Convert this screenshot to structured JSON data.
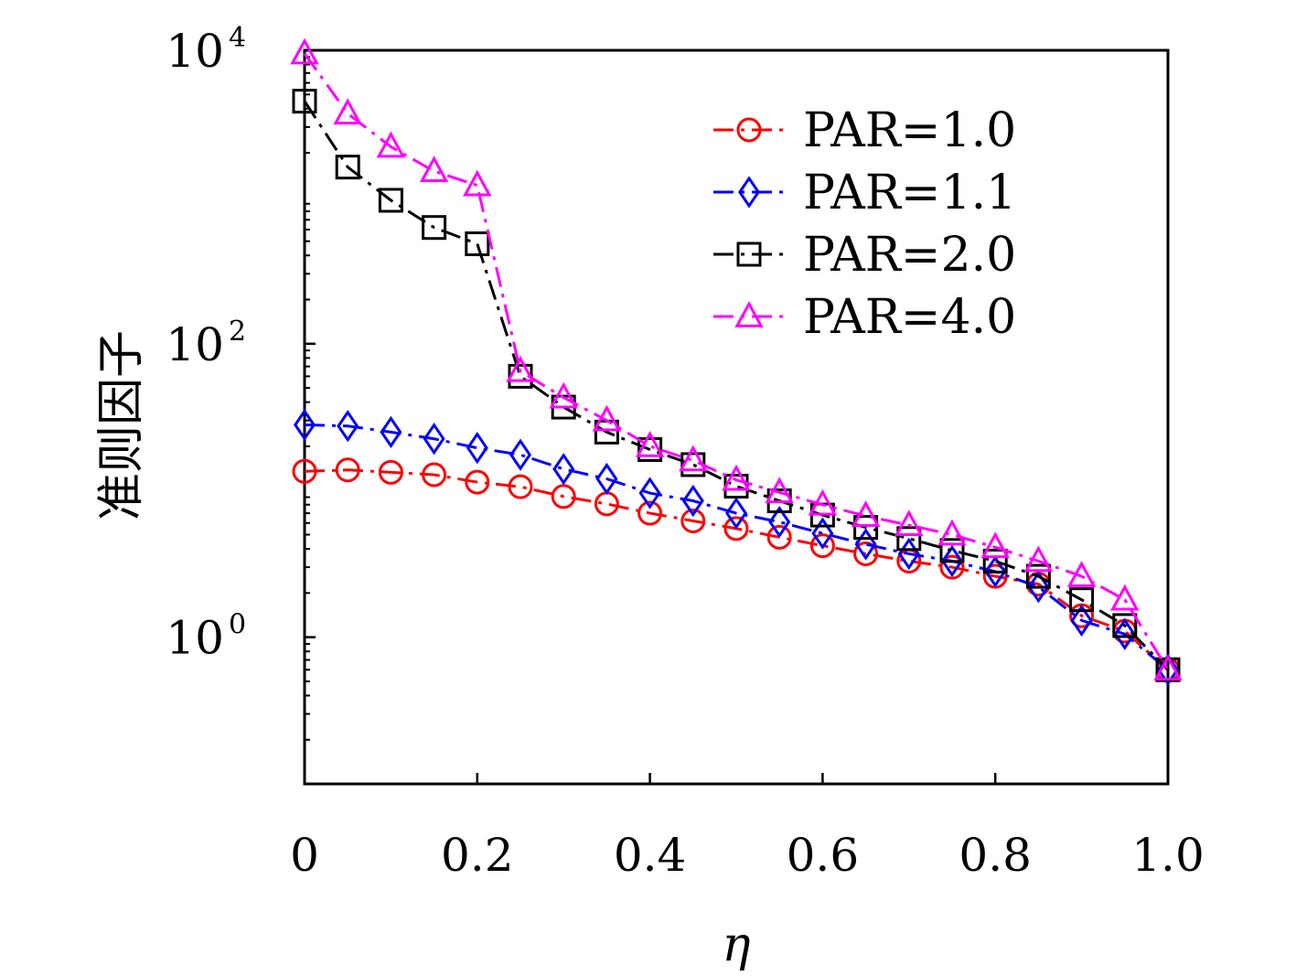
{
  "chart_data": {
    "type": "line",
    "xlabel": "η",
    "ylabel": "准则因子",
    "xlim": [
      0,
      1.0
    ],
    "ylim": [
      0.1,
      10000
    ],
    "yscale": "log",
    "x_ticks": [
      "0",
      "0.2",
      "0.4",
      "0.6",
      "0.8",
      "1.0"
    ],
    "y_ticks": [
      {
        "base": "10",
        "exp": "0"
      },
      {
        "base": "10",
        "exp": "2"
      },
      {
        "base": "10",
        "exp": "4"
      }
    ],
    "legend_position": "top-right",
    "grid": false,
    "x": [
      0,
      0.05,
      0.1,
      0.15,
      0.2,
      0.25,
      0.3,
      0.35,
      0.4,
      0.45,
      0.5,
      0.55,
      0.6,
      0.65,
      0.7,
      0.75,
      0.8,
      0.85,
      0.9,
      0.95,
      1.0
    ],
    "series": [
      {
        "name": "PAR=1.0",
        "color": "#ff0000",
        "marker": "circle",
        "values": [
          13.5,
          13.8,
          13.3,
          12.8,
          11.4,
          10.6,
          9.1,
          8.1,
          7.0,
          6.2,
          5.5,
          4.8,
          4.2,
          3.7,
          3.3,
          3.0,
          2.6,
          2.3,
          1.4,
          1.1,
          0.6
        ]
      },
      {
        "name": "PAR=1.1",
        "color": "#0000ff",
        "marker": "diamond",
        "values": [
          28.0,
          27.5,
          25.0,
          22.5,
          19.5,
          17.5,
          14.0,
          12.0,
          9.6,
          8.5,
          7.0,
          6.1,
          5.1,
          4.3,
          3.7,
          3.3,
          2.8,
          2.2,
          1.3,
          1.05,
          0.6
        ]
      },
      {
        "name": "PAR=2.0",
        "color": "#000000",
        "marker": "square",
        "values": [
          4500,
          1600,
          950,
          620,
          480,
          60,
          37,
          25,
          19,
          15,
          10.7,
          8.5,
          6.8,
          5.6,
          4.7,
          3.9,
          3.3,
          2.6,
          1.8,
          1.2,
          0.6
        ]
      },
      {
        "name": "PAR=4.0",
        "color": "#ff00ff",
        "marker": "triangle",
        "values": [
          9500,
          3700,
          2200,
          1500,
          1200,
          65,
          43,
          30,
          20,
          16,
          11.8,
          9.7,
          8.0,
          6.7,
          5.8,
          5.0,
          4.1,
          3.3,
          2.6,
          1.8,
          0.6
        ]
      }
    ]
  }
}
